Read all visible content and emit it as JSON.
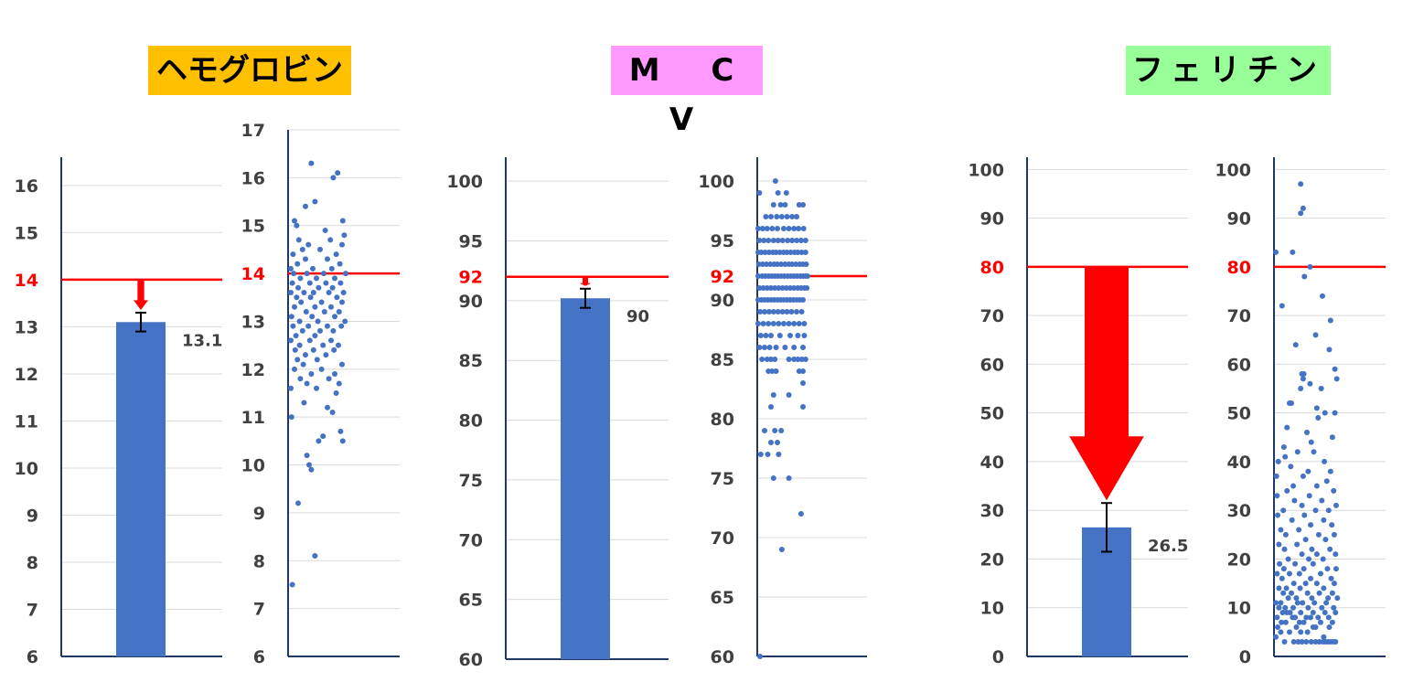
{
  "colors": {
    "bar": "#4472C4",
    "dot": "#4472C4",
    "reference": "#FF0000",
    "axis": "#203864",
    "grid": "#D9D9D9",
    "tick": "#404040",
    "title_bg": [
      "#FFC000",
      "#FF99FF",
      "#99FF99"
    ]
  },
  "titles": [
    "ヘモグロビン",
    "M C V",
    "フェリチン"
  ],
  "chart_data": [
    {
      "type": "bar",
      "ylim": [
        6,
        16.6
      ],
      "yticks": [
        "6",
        "7",
        "8",
        "9",
        "10",
        "11",
        "12",
        "13",
        "14",
        "15",
        "16"
      ],
      "values": [
        13.1
      ],
      "error": [
        0.2
      ],
      "value_label": "13.1",
      "reference": 14,
      "reference_label": "14"
    },
    {
      "type": "scatter",
      "ylim": [
        6,
        17
      ],
      "yticks": [
        "6",
        "7",
        "8",
        "9",
        "10",
        "11",
        "12",
        "13",
        "14",
        "15",
        "16",
        "17"
      ],
      "reference": 14,
      "reference_label": "14",
      "y": [
        16.3,
        16.1,
        16.0,
        15.5,
        15.4,
        15.1,
        15.1,
        15.0,
        14.9,
        14.8,
        14.7,
        14.7,
        14.6,
        14.6,
        14.5,
        14.5,
        14.4,
        14.4,
        14.3,
        14.3,
        14.2,
        14.2,
        14.1,
        14.1,
        14.1,
        14.0,
        14.0,
        14.0,
        14.0,
        13.9,
        13.9,
        13.9,
        13.8,
        13.8,
        13.8,
        13.8,
        13.7,
        13.7,
        13.7,
        13.6,
        13.6,
        13.6,
        13.6,
        13.6,
        13.5,
        13.5,
        13.5,
        13.4,
        13.4,
        13.4,
        13.3,
        13.3,
        13.3,
        13.2,
        13.2,
        13.2,
        13.1,
        13.1,
        13.1,
        13.0,
        13.0,
        13.0,
        12.9,
        12.9,
        12.9,
        12.9,
        12.8,
        12.8,
        12.8,
        12.7,
        12.7,
        12.6,
        12.6,
        12.6,
        12.5,
        12.5,
        12.5,
        12.4,
        12.4,
        12.4,
        12.3,
        12.3,
        12.2,
        12.2,
        12.1,
        12.1,
        12.0,
        12.0,
        11.9,
        11.9,
        11.8,
        11.8,
        11.7,
        11.7,
        11.6,
        11.6,
        11.5,
        11.3,
        11.2,
        11.1,
        11.0,
        10.7,
        10.6,
        10.5,
        10.5,
        10.2,
        10.0,
        9.9,
        9.2,
        8.1,
        7.5
      ],
      "x": [
        0.28,
        0.64,
        0.58,
        0.33,
        0.2,
        0.05,
        0.71,
        0.08,
        0.47,
        0.73,
        0.11,
        0.54,
        0.24,
        0.7,
        0.16,
        0.4,
        0.03,
        0.62,
        0.2,
        0.5,
        0.09,
        0.67,
        0.0,
        0.3,
        0.56,
        0.04,
        0.22,
        0.45,
        0.75,
        0.13,
        0.35,
        0.6,
        0.02,
        0.26,
        0.48,
        0.68,
        0.1,
        0.38,
        0.57,
        0.0,
        0.18,
        0.31,
        0.52,
        0.72,
        0.08,
        0.27,
        0.63,
        0.14,
        0.42,
        0.7,
        0.05,
        0.33,
        0.55,
        0.21,
        0.46,
        0.66,
        0.01,
        0.29,
        0.6,
        0.12,
        0.37,
        0.74,
        0.03,
        0.24,
        0.5,
        0.69,
        0.16,
        0.4,
        0.58,
        0.07,
        0.33,
        0.0,
        0.26,
        0.55,
        0.12,
        0.44,
        0.65,
        0.06,
        0.31,
        0.59,
        0.2,
        0.48,
        0.09,
        0.36,
        0.17,
        0.7,
        0.05,
        0.42,
        0.28,
        0.6,
        0.13,
        0.52,
        0.22,
        0.66,
        0.0,
        0.35,
        0.62,
        0.18,
        0.5,
        0.57,
        0.01,
        0.68,
        0.44,
        0.38,
        0.71,
        0.22,
        0.25,
        0.28,
        0.1,
        0.33,
        0.02
      ],
      "seed_note": ""
    },
    {
      "type": "bar",
      "ylim": [
        60,
        102
      ],
      "yticks": [
        "60",
        "65",
        "70",
        "75",
        "80",
        "85",
        "90",
        "95",
        "100"
      ],
      "values": [
        90.2
      ],
      "error": [
        0.8
      ],
      "value_label": "90",
      "reference": 92,
      "reference_label": "92"
    },
    {
      "type": "scatter",
      "ylim": [
        60,
        102
      ],
      "yticks": [
        "60",
        "65",
        "70",
        "75",
        "80",
        "85",
        "90",
        "95",
        "100"
      ],
      "reference": 92,
      "reference_label": "92",
      "y": [
        100,
        99,
        99,
        99,
        98,
        98,
        98,
        98,
        98,
        97,
        97,
        97,
        97,
        97,
        97,
        97,
        96,
        96,
        96,
        96,
        96,
        96,
        96,
        96,
        96,
        96,
        95,
        95,
        95,
        95,
        95,
        95,
        95,
        95,
        95,
        95,
        95,
        94,
        94,
        94,
        94,
        94,
        94,
        94,
        94,
        94,
        94,
        94,
        94,
        94,
        94,
        93,
        93,
        93,
        93,
        93,
        93,
        93,
        93,
        93,
        93,
        93,
        93,
        93,
        93,
        92,
        92,
        92,
        92,
        92,
        92,
        92,
        92,
        92,
        92,
        92,
        92,
        92,
        92,
        92,
        92,
        92,
        91,
        91,
        91,
        91,
        91,
        91,
        91,
        91,
        91,
        91,
        91,
        91,
        91,
        91,
        90,
        90,
        90,
        90,
        90,
        90,
        90,
        90,
        90,
        90,
        90,
        90,
        90,
        90,
        90,
        89,
        89,
        89,
        89,
        89,
        89,
        89,
        89,
        89,
        89,
        88,
        88,
        88,
        88,
        88,
        88,
        88,
        88,
        88,
        88,
        87,
        87,
        87,
        87,
        87,
        87,
        87,
        86,
        86,
        86,
        86,
        86,
        86,
        86,
        85,
        85,
        85,
        85,
        85,
        85,
        85,
        85,
        85,
        84,
        84,
        84,
        84,
        84,
        83,
        82,
        82,
        81,
        81,
        79,
        79,
        79,
        78,
        78,
        77,
        77,
        77,
        75,
        75,
        72,
        69,
        60
      ],
      "x": [
        0.27,
        0.02,
        0.31,
        0.44,
        0.24,
        0.35,
        0.42,
        0.64,
        0.7,
        0.12,
        0.2,
        0.29,
        0.37,
        0.45,
        0.53,
        0.6,
        0.0,
        0.07,
        0.14,
        0.22,
        0.3,
        0.4,
        0.48,
        0.56,
        0.63,
        0.71,
        0.02,
        0.09,
        0.16,
        0.24,
        0.31,
        0.38,
        0.46,
        0.53,
        0.6,
        0.67,
        0.74,
        0.0,
        0.05,
        0.11,
        0.17,
        0.23,
        0.28,
        0.34,
        0.4,
        0.45,
        0.51,
        0.57,
        0.62,
        0.68,
        0.74,
        0.01,
        0.07,
        0.13,
        0.19,
        0.25,
        0.3,
        0.36,
        0.42,
        0.48,
        0.53,
        0.59,
        0.65,
        0.7,
        0.75,
        0.0,
        0.06,
        0.11,
        0.16,
        0.21,
        0.26,
        0.31,
        0.36,
        0.41,
        0.46,
        0.51,
        0.56,
        0.61,
        0.66,
        0.7,
        0.74,
        0.77,
        0.02,
        0.08,
        0.14,
        0.2,
        0.26,
        0.32,
        0.38,
        0.44,
        0.5,
        0.56,
        0.62,
        0.67,
        0.72,
        0.76,
        0.0,
        0.05,
        0.1,
        0.15,
        0.2,
        0.25,
        0.3,
        0.35,
        0.4,
        0.45,
        0.5,
        0.55,
        0.6,
        0.65,
        0.7,
        0.03,
        0.1,
        0.17,
        0.24,
        0.31,
        0.38,
        0.45,
        0.52,
        0.6,
        0.68,
        0.0,
        0.08,
        0.16,
        0.24,
        0.32,
        0.4,
        0.48,
        0.56,
        0.64,
        0.72,
        0.04,
        0.12,
        0.2,
        0.34,
        0.5,
        0.62,
        0.72,
        0.02,
        0.1,
        0.18,
        0.28,
        0.42,
        0.56,
        0.7,
        0.06,
        0.14,
        0.2,
        0.26,
        0.48,
        0.56,
        0.62,
        0.68,
        0.74,
        0.16,
        0.22,
        0.28,
        0.64,
        0.7,
        0.7,
        0.24,
        0.48,
        0.2,
        0.7,
        0.1,
        0.26,
        0.36,
        0.2,
        0.3,
        0.04,
        0.15,
        0.32,
        0.24,
        0.48,
        0.67,
        0.37,
        0.03
      ],
      "seed_note": ""
    },
    {
      "type": "bar",
      "ylim": [
        0,
        100
      ],
      "yticks": [
        "0",
        "10",
        "20",
        "30",
        "40",
        "50",
        "60",
        "70",
        "80",
        "90",
        "100"
      ],
      "values": [
        26.5
      ],
      "error": [
        5
      ],
      "value_label": "26.5",
      "reference": 80,
      "reference_label": "80"
    },
    {
      "type": "scatter",
      "ylim": [
        0,
        100
      ],
      "yticks": [
        "0",
        "10",
        "20",
        "30",
        "40",
        "50",
        "60",
        "70",
        "80",
        "90",
        "100"
      ],
      "reference": 80,
      "reference_label": "80",
      "y": [
        97,
        92,
        91,
        83,
        83,
        80,
        78,
        74,
        72,
        69,
        66,
        64,
        63,
        59,
        58,
        58,
        57,
        57,
        56,
        55,
        55,
        52,
        52,
        51,
        50,
        50,
        49,
        47,
        46,
        45,
        44,
        43,
        42,
        42,
        41,
        40,
        40,
        39,
        38,
        38,
        37,
        37,
        36,
        35,
        35,
        34,
        34,
        33,
        33,
        32,
        32,
        31,
        31,
        30,
        30,
        30,
        29,
        29,
        28,
        28,
        27,
        27,
        26,
        26,
        25,
        25,
        25,
        24,
        24,
        23,
        23,
        22,
        22,
        22,
        21,
        21,
        21,
        20,
        20,
        20,
        19,
        19,
        19,
        18,
        18,
        18,
        18,
        17,
        17,
        17,
        17,
        16,
        16,
        16,
        15,
        15,
        15,
        15,
        14,
        14,
        14,
        14,
        13,
        13,
        13,
        13,
        13,
        12,
        12,
        12,
        12,
        12,
        11,
        11,
        11,
        11,
        11,
        11,
        10,
        10,
        10,
        10,
        10,
        10,
        9,
        9,
        9,
        9,
        9,
        9,
        9,
        8,
        8,
        8,
        8,
        8,
        8,
        8,
        7,
        7,
        7,
        7,
        7,
        7,
        6,
        6,
        6,
        6,
        6,
        5,
        5,
        5,
        5,
        4,
        4,
        3,
        3,
        3,
        3,
        3,
        3,
        3,
        3,
        3,
        3,
        3,
        3,
        3,
        3
      ],
      "x": [
        0.4,
        0.44,
        0.4,
        0.0,
        0.27,
        0.55,
        0.46,
        0.75,
        0.1,
        0.88,
        0.64,
        0.32,
        0.86,
        0.95,
        0.42,
        0.45,
        0.98,
        0.44,
        0.55,
        0.4,
        0.73,
        0.25,
        0.22,
        0.66,
        0.79,
        0.95,
        0.68,
        0.18,
        0.5,
        0.91,
        0.57,
        0.13,
        0.35,
        0.61,
        0.15,
        0.04,
        0.78,
        0.24,
        0.52,
        0.88,
        0.01,
        0.44,
        0.82,
        0.28,
        0.66,
        0.18,
        0.93,
        0.02,
        0.54,
        0.74,
        0.3,
        0.97,
        0.42,
        0.12,
        0.64,
        0.85,
        0.03,
        0.46,
        0.26,
        0.77,
        0.56,
        0.9,
        0.08,
        0.37,
        0.16,
        0.69,
        0.94,
        0.48,
        0.8,
        0.05,
        0.34,
        0.58,
        0.14,
        0.87,
        0.42,
        0.66,
        0.96,
        0.2,
        0.53,
        0.76,
        0.06,
        0.31,
        0.6,
        0.13,
        0.45,
        0.83,
        0.97,
        0.22,
        0.38,
        0.72,
        0.02,
        0.56,
        0.1,
        0.89,
        0.29,
        0.48,
        0.66,
        0.94,
        0.17,
        0.39,
        0.77,
        0.05,
        0.25,
        0.51,
        0.7,
        0.91,
        0.12,
        0.33,
        0.58,
        0.84,
        0.99,
        0.2,
        0.43,
        0.62,
        0.81,
        0.08,
        0.35,
        0.0,
        0.15,
        0.28,
        0.52,
        0.74,
        0.93,
        0.05,
        0.23,
        0.4,
        0.6,
        0.79,
        0.96,
        0.18,
        0.11,
        0.31,
        0.49,
        0.68,
        0.85,
        0.02,
        0.27,
        0.56,
        0.09,
        0.38,
        0.72,
        0.91,
        0.16,
        0.45,
        0.64,
        0.03,
        0.33,
        0.6,
        0.86,
        0.22,
        0.51,
        0.08,
        0.4,
        0.77,
        0.0,
        0.96,
        0.14,
        0.29,
        0.36,
        0.42,
        0.49,
        0.57,
        0.64,
        0.7,
        0.76,
        0.8,
        0.84,
        0.88,
        0.92
      ],
      "seed_note": ""
    }
  ]
}
